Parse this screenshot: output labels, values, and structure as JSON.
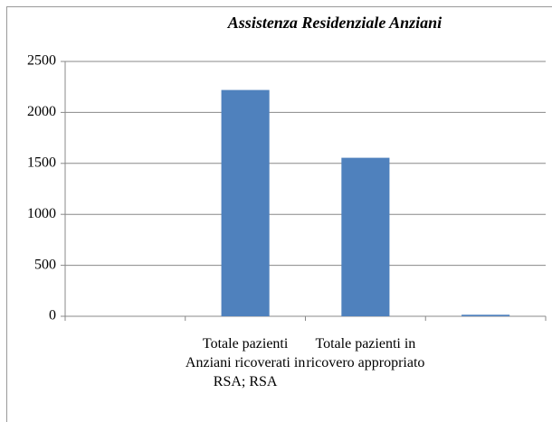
{
  "chart_data": {
    "type": "bar",
    "title": "Assistenza Residenziale Anziani",
    "categories": [
      null,
      "Totale pazienti Anziani ricoverati in RSA; RSA",
      "Totale pazienti in ricovero appropriato",
      null
    ],
    "values": [
      null,
      2220,
      1555,
      15
    ],
    "color": "#4f81bd",
    "ylim": [
      0,
      2500
    ],
    "yticks": [
      0,
      500,
      1000,
      1500,
      2000,
      2500
    ],
    "grid": true
  }
}
